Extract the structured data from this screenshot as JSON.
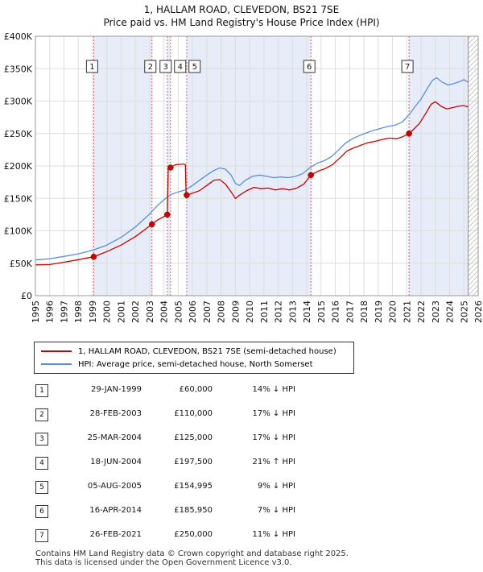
{
  "chart_data": {
    "type": "line",
    "title": "1, HALLAM ROAD, CLEVEDON, BS21 7SE",
    "subtitle": "Price paid vs. HM Land Registry's House Price Index (HPI)",
    "xlim": [
      1995,
      2026
    ],
    "ylim": [
      0,
      400000
    ],
    "x_ticks": [
      "1995",
      "1996",
      "1997",
      "1998",
      "1999",
      "2000",
      "2001",
      "2002",
      "2003",
      "2004",
      "2005",
      "2006",
      "2007",
      "2008",
      "2009",
      "2010",
      "2011",
      "2012",
      "2013",
      "2014",
      "2015",
      "2016",
      "2017",
      "2018",
      "2019",
      "2020",
      "2021",
      "2022",
      "2023",
      "2024",
      "2025",
      "2026"
    ],
    "y_ticks": [
      {
        "value": 0,
        "label": "£0"
      },
      {
        "value": 50000,
        "label": "£50K"
      },
      {
        "value": 100000,
        "label": "£100K"
      },
      {
        "value": 150000,
        "label": "£150K"
      },
      {
        "value": 200000,
        "label": "£200K"
      },
      {
        "value": 250000,
        "label": "£250K"
      },
      {
        "value": 300000,
        "label": "£300K"
      },
      {
        "value": 350000,
        "label": "£350K"
      },
      {
        "value": 400000,
        "label": "£400K"
      }
    ],
    "grid": true,
    "colors": {
      "property": "#cc0000",
      "hpi": "#5b8ed6",
      "band": "#e6ecf8",
      "hatch": "#bbbbbb"
    },
    "future_from": 2025.3,
    "series": [
      {
        "name": "1, HALLAM ROAD, CLEVEDON, BS21 7SE (semi-detached house)",
        "color": "#cc0000",
        "points": [
          [
            1995.0,
            47500
          ],
          [
            1996.0,
            48000
          ],
          [
            1997.0,
            51500
          ],
          [
            1998.0,
            55500
          ],
          [
            1999.08,
            60000
          ],
          [
            2000.0,
            68000
          ],
          [
            2001.0,
            78000
          ],
          [
            2002.0,
            91000
          ],
          [
            2003.16,
            110000
          ],
          [
            2003.5,
            116000
          ],
          [
            2004.0,
            122000
          ],
          [
            2004.23,
            125000
          ],
          [
            2004.3,
            195000
          ],
          [
            2004.46,
            197500
          ],
          [
            2004.8,
            202000
          ],
          [
            2005.4,
            203000
          ],
          [
            2005.5,
            202000
          ],
          [
            2005.55,
            152000
          ],
          [
            2005.59,
            154995
          ],
          [
            2006.0,
            158000
          ],
          [
            2006.5,
            162000
          ],
          [
            2007.0,
            170000
          ],
          [
            2007.5,
            178000
          ],
          [
            2007.9,
            179000
          ],
          [
            2008.3,
            172000
          ],
          [
            2008.7,
            160000
          ],
          [
            2009.0,
            150000
          ],
          [
            2009.3,
            155000
          ],
          [
            2009.8,
            162000
          ],
          [
            2010.3,
            167000
          ],
          [
            2010.8,
            165000
          ],
          [
            2011.3,
            166000
          ],
          [
            2011.8,
            163000
          ],
          [
            2012.3,
            165000
          ],
          [
            2012.8,
            163000
          ],
          [
            2013.3,
            166000
          ],
          [
            2013.8,
            172000
          ],
          [
            2014.29,
            185950
          ],
          [
            2014.8,
            192000
          ],
          [
            2015.3,
            196000
          ],
          [
            2015.8,
            202000
          ],
          [
            2016.3,
            212000
          ],
          [
            2016.8,
            223000
          ],
          [
            2017.3,
            228000
          ],
          [
            2017.8,
            232000
          ],
          [
            2018.3,
            236000
          ],
          [
            2018.8,
            238000
          ],
          [
            2019.3,
            241000
          ],
          [
            2019.8,
            243000
          ],
          [
            2020.3,
            242000
          ],
          [
            2020.7,
            245000
          ],
          [
            2021.16,
            250000
          ],
          [
            2021.5,
            257000
          ],
          [
            2021.9,
            266000
          ],
          [
            2022.3,
            280000
          ],
          [
            2022.7,
            295000
          ],
          [
            2023.0,
            299000
          ],
          [
            2023.4,
            292000
          ],
          [
            2023.8,
            288000
          ],
          [
            2024.2,
            290000
          ],
          [
            2024.6,
            292000
          ],
          [
            2025.0,
            293000
          ],
          [
            2025.3,
            291000
          ]
        ]
      },
      {
        "name": "HPI: Average price, semi-detached house, North Somerset",
        "color": "#5b8ed6",
        "points": [
          [
            1995.0,
            55000
          ],
          [
            1996.0,
            57000
          ],
          [
            1997.0,
            60500
          ],
          [
            1998.0,
            64500
          ],
          [
            1999.0,
            70000
          ],
          [
            2000.0,
            78000
          ],
          [
            2001.0,
            90000
          ],
          [
            2002.0,
            106000
          ],
          [
            2003.0,
            126000
          ],
          [
            2003.5,
            138000
          ],
          [
            2004.0,
            148000
          ],
          [
            2004.5,
            156000
          ],
          [
            2005.0,
            160000
          ],
          [
            2005.5,
            163000
          ],
          [
            2006.0,
            170000
          ],
          [
            2006.5,
            178000
          ],
          [
            2007.0,
            186000
          ],
          [
            2007.5,
            193000
          ],
          [
            2007.9,
            197000
          ],
          [
            2008.3,
            195000
          ],
          [
            2008.7,
            186000
          ],
          [
            2009.0,
            173000
          ],
          [
            2009.3,
            170000
          ],
          [
            2009.7,
            178000
          ],
          [
            2010.2,
            184000
          ],
          [
            2010.7,
            186000
          ],
          [
            2011.2,
            184000
          ],
          [
            2011.7,
            182000
          ],
          [
            2012.2,
            183000
          ],
          [
            2012.7,
            182000
          ],
          [
            2013.2,
            184000
          ],
          [
            2013.7,
            188000
          ],
          [
            2014.2,
            197000
          ],
          [
            2014.7,
            204000
          ],
          [
            2015.2,
            208000
          ],
          [
            2015.7,
            214000
          ],
          [
            2016.2,
            224000
          ],
          [
            2016.7,
            235000
          ],
          [
            2017.2,
            242000
          ],
          [
            2017.7,
            247000
          ],
          [
            2018.2,
            251000
          ],
          [
            2018.7,
            255000
          ],
          [
            2019.2,
            258000
          ],
          [
            2019.7,
            261000
          ],
          [
            2020.2,
            263000
          ],
          [
            2020.7,
            268000
          ],
          [
            2021.2,
            280000
          ],
          [
            2021.6,
            292000
          ],
          [
            2022.0,
            303000
          ],
          [
            2022.4,
            318000
          ],
          [
            2022.8,
            332000
          ],
          [
            2023.1,
            336000
          ],
          [
            2023.5,
            329000
          ],
          [
            2023.9,
            325000
          ],
          [
            2024.3,
            327000
          ],
          [
            2024.7,
            330000
          ],
          [
            2025.0,
            333000
          ],
          [
            2025.3,
            329000
          ]
        ]
      }
    ],
    "sales": [
      {
        "n": "1",
        "x": 1999.08,
        "price": 60000
      },
      {
        "n": "2",
        "x": 2003.16,
        "price": 110000
      },
      {
        "n": "3",
        "x": 2004.23,
        "price": 125000
      },
      {
        "n": "4",
        "x": 2004.46,
        "price": 197500
      },
      {
        "n": "5",
        "x": 2005.59,
        "price": 154995
      },
      {
        "n": "6",
        "x": 2014.29,
        "price": 185950
      },
      {
        "n": "7",
        "x": 2021.16,
        "price": 250000
      }
    ],
    "bands": [
      [
        1999.08,
        2003.16
      ],
      [
        2004.23,
        2004.46
      ],
      [
        2005.59,
        2014.29
      ],
      [
        2021.16,
        2025.3
      ]
    ]
  },
  "legend": {
    "property_label": "1, HALLAM ROAD, CLEVEDON, BS21 7SE (semi-detached house)",
    "hpi_label": "HPI: Average price, semi-detached house, North Somerset"
  },
  "table": [
    {
      "num": "1",
      "date": "29-JAN-1999",
      "price": "£60,000",
      "hpi": "14% ↓ HPI"
    },
    {
      "num": "2",
      "date": "28-FEB-2003",
      "price": "£110,000",
      "hpi": "17% ↓ HPI"
    },
    {
      "num": "3",
      "date": "25-MAR-2004",
      "price": "£125,000",
      "hpi": "17% ↓ HPI"
    },
    {
      "num": "4",
      "date": "18-JUN-2004",
      "price": "£197,500",
      "hpi": "21% ↑ HPI"
    },
    {
      "num": "5",
      "date": "05-AUG-2005",
      "price": "£154,995",
      "hpi": "9% ↓ HPI"
    },
    {
      "num": "6",
      "date": "16-APR-2014",
      "price": "£185,950",
      "hpi": "7% ↓ HPI"
    },
    {
      "num": "7",
      "date": "26-FEB-2021",
      "price": "£250,000",
      "hpi": "11% ↓ HPI"
    }
  ],
  "footer": {
    "line1": "Contains HM Land Registry data © Crown copyright and database right 2025.",
    "line2": "This data is licensed under the Open Government Licence v3.0."
  }
}
